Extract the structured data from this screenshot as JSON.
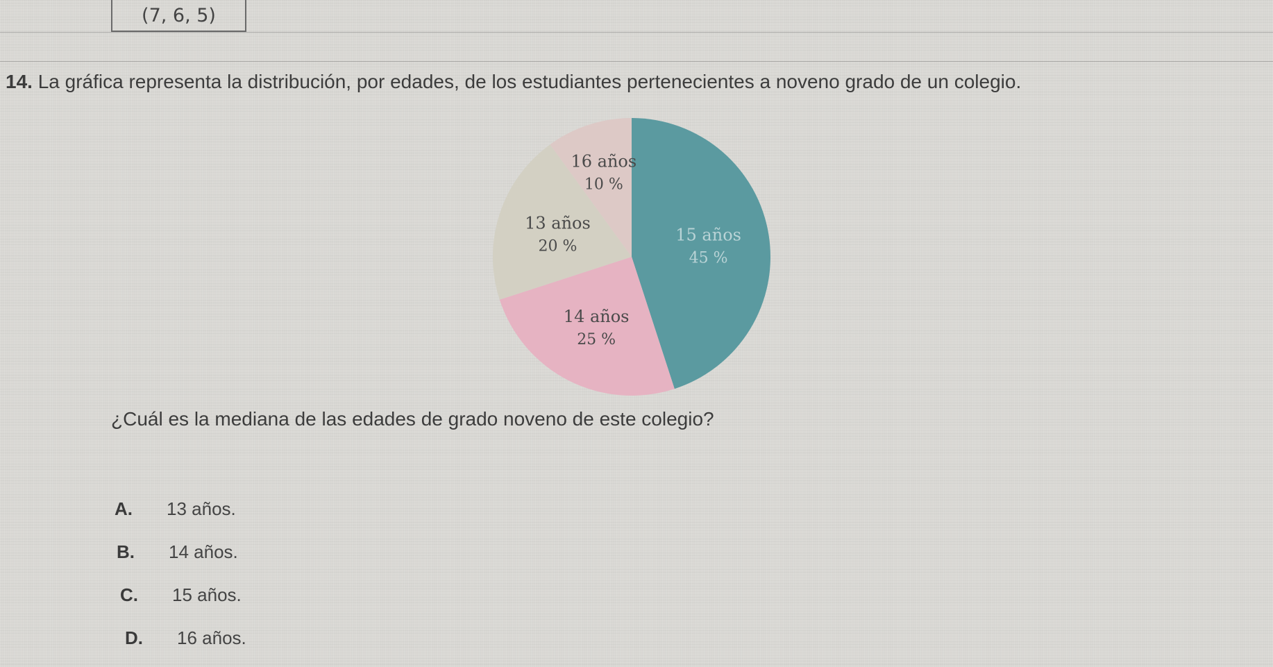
{
  "previous_answer": "(7, 6, 5)",
  "question": {
    "number": "14.",
    "text": "La gráfica representa la distribución, por edades, de los estudiantes pertenecientes a noveno grado de un colegio."
  },
  "chart_data": {
    "type": "pie",
    "slices": [
      {
        "label": "15 años",
        "value": 45,
        "value_label": "45 %",
        "color": "#5b9aa0"
      },
      {
        "label": "14 años",
        "value": 25,
        "value_label": "25 %",
        "color": "#e6b3c2"
      },
      {
        "label": "13 años",
        "value": 20,
        "value_label": "20 %",
        "color": "#d3d0c3"
      },
      {
        "label": "16 años",
        "value": 10,
        "value_label": "10 %",
        "color": "#ddc9c6"
      }
    ]
  },
  "prompt": "¿Cuál es la mediana de las edades de grado noveno de este colegio?",
  "options": [
    {
      "letter": "A.",
      "text": "13 años."
    },
    {
      "letter": "B.",
      "text": "14 años."
    },
    {
      "letter": "C.",
      "text": "15 años."
    },
    {
      "letter": "D.",
      "text": "16 años."
    }
  ]
}
